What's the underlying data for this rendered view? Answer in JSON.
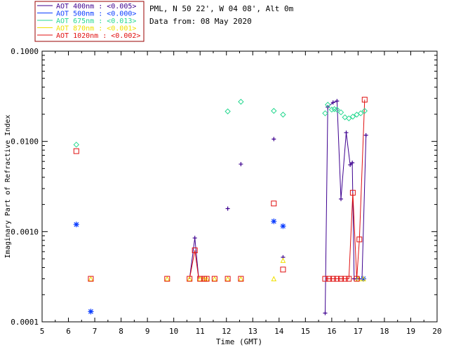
{
  "header": {
    "site_line": "PML, N 50 22', W 04 08', Alt 0m",
    "date_line": "Data from: 08 May 2020"
  },
  "chart_data": {
    "type": "scatter",
    "title": "",
    "xlabel": "Time (GMT)",
    "ylabel": "Imaginary Part of Refractive Index",
    "xlim": [
      5,
      20
    ],
    "ylim": [
      0.0001,
      0.1
    ],
    "yscale": "log",
    "x_ticks": [
      "5",
      "6",
      "7",
      "8",
      "9",
      "10",
      "11",
      "12",
      "13",
      "14",
      "15",
      "16",
      "17",
      "18",
      "19",
      "20"
    ],
    "y_ticks": [
      "0.0001",
      "0.0010",
      "0.0100",
      "0.1000"
    ],
    "legend_position": "top-left",
    "series": [
      {
        "name": "AOT  400nm : <0.005>",
        "color": "#3d008f",
        "marker": "plus",
        "points": [
          [
            10.8,
            0.00085
          ],
          [
            12.05,
            0.0018
          ],
          [
            12.55,
            0.0056
          ],
          [
            13.8,
            0.0106
          ],
          [
            14.15,
            0.00052
          ],
          [
            15.75,
            0.000125
          ],
          [
            15.85,
            0.024
          ],
          [
            16.05,
            0.027
          ],
          [
            16.2,
            0.028
          ],
          [
            16.35,
            0.0023
          ],
          [
            16.55,
            0.0125
          ],
          [
            16.7,
            0.0055
          ],
          [
            16.78,
            0.0058
          ],
          [
            16.85,
            0.0003
          ],
          [
            16.95,
            0.0003
          ],
          [
            17.05,
            0.0003
          ],
          [
            17.15,
            0.0003
          ],
          [
            17.3,
            0.0117
          ]
        ],
        "line_segments": [
          [
            [
              10.6,
              0.0003
            ],
            [
              10.8,
              0.00085
            ],
            [
              10.95,
              0.0003
            ]
          ],
          [
            [
              15.75,
              0.000125
            ],
            [
              15.85,
              0.024
            ],
            [
              16.05,
              0.027
            ],
            [
              16.2,
              0.028
            ],
            [
              16.35,
              0.0023
            ],
            [
              16.55,
              0.0125
            ],
            [
              16.7,
              0.0055
            ],
            [
              16.78,
              0.0058
            ],
            [
              16.85,
              0.0003
            ],
            [
              16.95,
              0.0003
            ],
            [
              17.05,
              0.0003
            ],
            [
              17.15,
              0.0003
            ],
            [
              17.3,
              0.0117
            ]
          ]
        ]
      },
      {
        "name": "AOT  500nm : <0.000>",
        "color": "#0a3cff",
        "marker": "asterisk",
        "points": [
          [
            6.3,
            0.0012
          ],
          [
            6.85,
            0.00013
          ],
          [
            13.8,
            0.0013
          ],
          [
            14.15,
            0.00115
          ],
          [
            17.2,
            0.0003
          ]
        ]
      },
      {
        "name": "AOT  675nm : <0.013>",
        "color": "#27d890",
        "marker": "diamond",
        "points": [
          [
            6.3,
            0.0092
          ],
          [
            12.05,
            0.0215
          ],
          [
            12.55,
            0.0275
          ],
          [
            13.8,
            0.0218
          ],
          [
            14.15,
            0.0198
          ],
          [
            15.75,
            0.0205
          ],
          [
            15.85,
            0.0255
          ],
          [
            16.0,
            0.0225
          ],
          [
            16.1,
            0.0228
          ],
          [
            16.2,
            0.0225
          ],
          [
            16.35,
            0.021
          ],
          [
            16.5,
            0.0185
          ],
          [
            16.65,
            0.018
          ],
          [
            16.8,
            0.0188
          ],
          [
            16.95,
            0.0198
          ],
          [
            17.1,
            0.0205
          ],
          [
            17.25,
            0.0218
          ]
        ]
      },
      {
        "name": "AOT  870nm : <0.001>",
        "color": "#f0e000",
        "marker": "triangle",
        "points": [
          [
            6.85,
            0.0003
          ],
          [
            9.75,
            0.0003
          ],
          [
            10.6,
            0.0003
          ],
          [
            11.0,
            0.0003
          ],
          [
            11.15,
            0.0003
          ],
          [
            11.25,
            0.0003
          ],
          [
            11.55,
            0.0003
          ],
          [
            12.05,
            0.0003
          ],
          [
            12.55,
            0.0003
          ],
          [
            13.8,
            0.0003
          ],
          [
            14.15,
            0.00048
          ],
          [
            17.0,
            0.0003
          ],
          [
            17.2,
            0.0003
          ]
        ]
      },
      {
        "name": "AOT 1020nm : <0.002>",
        "color": "#e01010",
        "marker": "square",
        "points": [
          [
            6.3,
            0.0078
          ],
          [
            6.85,
            0.0003
          ],
          [
            9.75,
            0.0003
          ],
          [
            10.6,
            0.0003
          ],
          [
            10.8,
            0.00062
          ],
          [
            11.0,
            0.0003
          ],
          [
            11.15,
            0.0003
          ],
          [
            11.25,
            0.0003
          ],
          [
            11.55,
            0.0003
          ],
          [
            12.05,
            0.0003
          ],
          [
            12.55,
            0.0003
          ],
          [
            13.8,
            0.00205
          ],
          [
            14.15,
            0.00038
          ],
          [
            15.75,
            0.0003
          ],
          [
            15.9,
            0.0003
          ],
          [
            16.05,
            0.0003
          ],
          [
            16.2,
            0.0003
          ],
          [
            16.35,
            0.0003
          ],
          [
            16.5,
            0.0003
          ],
          [
            16.65,
            0.0003
          ],
          [
            16.8,
            0.0027
          ],
          [
            16.95,
            0.0003
          ],
          [
            17.05,
            0.00082
          ],
          [
            17.25,
            0.029
          ]
        ],
        "line_segments": [
          [
            [
              10.6,
              0.0003
            ],
            [
              10.8,
              0.00062
            ],
            [
              10.95,
              0.0003
            ]
          ],
          [
            [
              15.75,
              0.0003
            ],
            [
              15.9,
              0.0003
            ],
            [
              16.05,
              0.0003
            ],
            [
              16.2,
              0.0003
            ],
            [
              16.35,
              0.0003
            ],
            [
              16.5,
              0.0003
            ],
            [
              16.65,
              0.0003
            ],
            [
              16.8,
              0.0027
            ],
            [
              16.95,
              0.0003
            ],
            [
              17.05,
              0.00082
            ],
            [
              17.25,
              0.029
            ]
          ]
        ]
      }
    ]
  }
}
